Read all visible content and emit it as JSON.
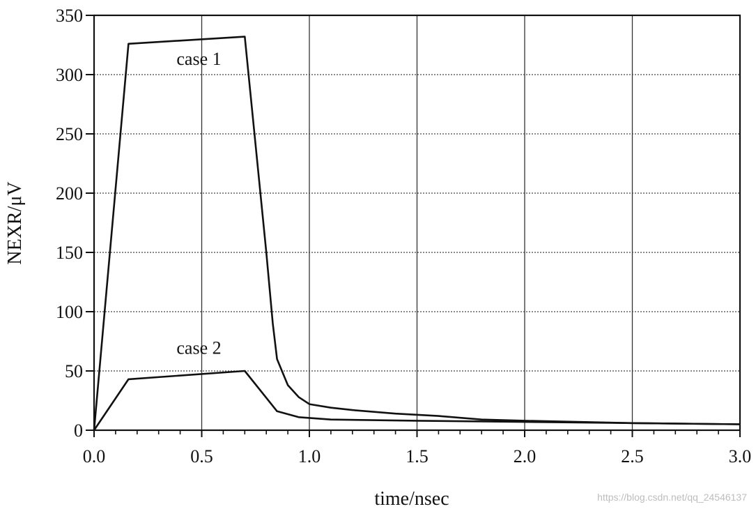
{
  "chart_data": {
    "type": "line",
    "xlabel": "time/nsec",
    "ylabel": "NEXR/μV",
    "xlim": [
      0,
      3.0
    ],
    "ylim": [
      0,
      350
    ],
    "xticks": [
      "0.0",
      "0.5",
      "1.0",
      "1.5",
      "2.0",
      "2.5",
      "3.0"
    ],
    "yticks": [
      "0",
      "50",
      "100",
      "150",
      "200",
      "250",
      "300",
      "350"
    ],
    "grid": true,
    "legend": "none",
    "series": [
      {
        "name": "case 1",
        "x": [
          0.0,
          0.16,
          0.7,
          0.8,
          0.83,
          0.85,
          0.9,
          0.95,
          1.0,
          1.1,
          1.2,
          1.4,
          1.6,
          1.8,
          2.0,
          2.5,
          3.0
        ],
        "y": [
          0,
          326,
          332,
          150,
          90,
          60,
          38,
          28,
          22,
          19,
          17,
          14,
          12,
          9,
          8,
          6,
          5
        ]
      },
      {
        "name": "case 2",
        "x": [
          0.0,
          0.16,
          0.7,
          0.85,
          0.95,
          1.1,
          1.5,
          2.0,
          2.5,
          3.0
        ],
        "y": [
          0,
          43,
          50,
          16,
          11,
          9,
          8,
          7,
          6,
          5
        ]
      }
    ],
    "annotations": [
      {
        "text": "case 1",
        "x": 0.5,
        "y": 313
      },
      {
        "text": "case 2",
        "x": 0.5,
        "y": 69
      }
    ]
  },
  "watermark": "https://blog.csdn.net/qq_24546137"
}
